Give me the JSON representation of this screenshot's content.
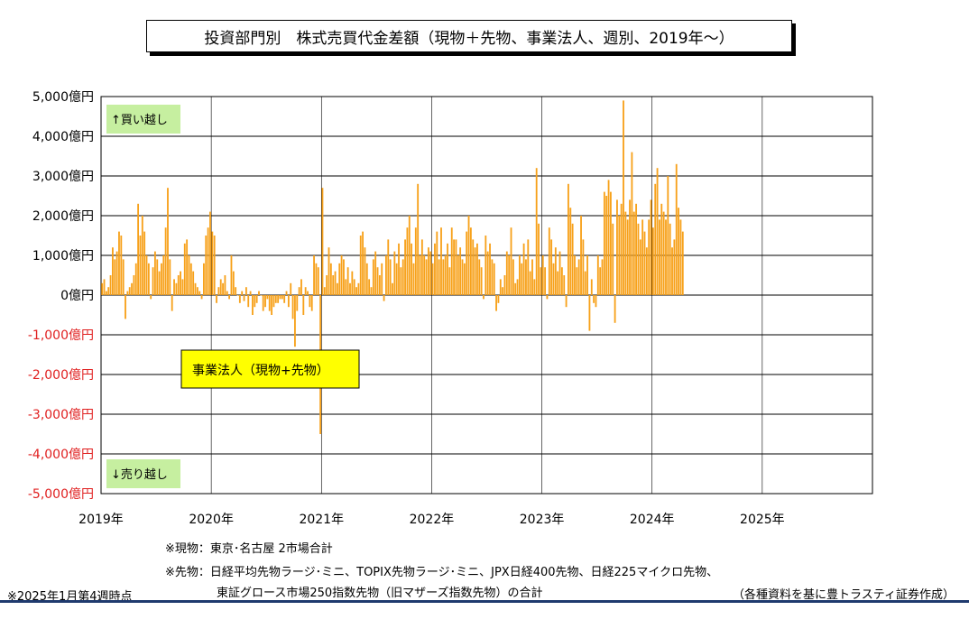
{
  "title": "投資部門別　株式売買代金差額（現物＋先物、事業法人、週別、2019年～）",
  "annotations": {
    "buy": "↑買い越し",
    "sell": "↓売り越し",
    "series_label": "事業法人（現物+先物）"
  },
  "notes": {
    "line1": "※現物：東京･名古屋 2市場合計",
    "line2": "※先物：日経平均先物ラージ･ミニ、TOPIX先物ラージ･ミニ、JPX日経400先物、日経225マイクロ先物、",
    "line3": "東証グロース市場250指数先物（旧マザーズ指数先物）の合計",
    "as_of": "※2025年1月第4週時点",
    "source": "（各種資料を基に豊トラスティ証券作成）"
  },
  "colors": {
    "bar": "#F7A11A",
    "negative_tick": "#E02020",
    "annotation_bg": "#C6EFA0",
    "label_bg": "#FFFF00",
    "rule": "#1F3A6E"
  },
  "chart_data": {
    "type": "bar",
    "title": "投資部門別　株式売買代金差額（現物＋先物、事業法人、週別、2019年～）",
    "unit": "億円",
    "ylim": [
      -5000,
      5000
    ],
    "yticks": [
      {
        "value": 5000,
        "label": "5,000億円"
      },
      {
        "value": 4000,
        "label": "4,000億円"
      },
      {
        "value": 3000,
        "label": "3,000億円"
      },
      {
        "value": 2000,
        "label": "2,000億円"
      },
      {
        "value": 1000,
        "label": "1,000億円"
      },
      {
        "value": 0,
        "label": "0億円"
      },
      {
        "value": -1000,
        "label": "-1,000億円"
      },
      {
        "value": -2000,
        "label": "-2,000億円"
      },
      {
        "value": -3000,
        "label": "-3,000億円"
      },
      {
        "value": -4000,
        "label": "-4,000億円"
      },
      {
        "value": -5000,
        "label": "-5,000億円"
      }
    ],
    "xlim": [
      2019,
      2026
    ],
    "xticks": [
      {
        "value": 2019,
        "label": "2019年"
      },
      {
        "value": 2020,
        "label": "2020年"
      },
      {
        "value": 2021,
        "label": "2021年"
      },
      {
        "value": 2022,
        "label": "2022年"
      },
      {
        "value": 2023,
        "label": "2023年"
      },
      {
        "value": 2024,
        "label": "2024年"
      },
      {
        "value": 2025,
        "label": "2025年"
      }
    ],
    "grid": true,
    "weeks_per_year": 52,
    "series": [
      {
        "values": [
          300,
          400,
          100,
          200,
          500,
          1200,
          900,
          1100,
          1600,
          1500,
          900,
          -600,
          100,
          200,
          300,
          500,
          800,
          2300,
          1500,
          2000,
          1600,
          1000,
          800,
          -100,
          700,
          1100,
          900,
          600,
          800,
          1000,
          1700,
          2700,
          900,
          -400,
          400,
          300,
          500,
          600,
          400,
          1300,
          1400,
          1000,
          800,
          600,
          300,
          200,
          100,
          -100,
          800,
          1500,
          1700,
          2100,
          1600,
          1500,
          -200,
          200,
          400,
          300,
          500,
          100,
          -100,
          1000,
          600,
          200,
          0,
          -200,
          100,
          -150,
          200,
          -300,
          100,
          -500,
          -300,
          -200,
          100,
          0,
          -400,
          -300,
          -100,
          -400,
          -500,
          -300,
          -200,
          -200,
          -100,
          -100,
          -200,
          100,
          -300,
          300,
          -600,
          -1300,
          -400,
          200,
          400,
          -500,
          200,
          100,
          -300,
          -400,
          1000,
          800,
          700,
          -3500,
          2700,
          200,
          500,
          1200,
          800,
          500,
          600,
          300,
          800,
          1000,
          900,
          400,
          700,
          300,
          600,
          400,
          200,
          300,
          1500,
          1600,
          1200,
          800,
          400,
          200,
          900,
          1100,
          700,
          500,
          800,
          -150,
          1000,
          1400,
          900,
          300,
          1100,
          800,
          1300,
          700,
          900,
          1400,
          1700,
          2000,
          1300,
          800,
          1700,
          2800,
          1000,
          1400,
          1000,
          900,
          1200,
          1100,
          800,
          1300,
          1600,
          900,
          1700,
          900,
          1000,
          1300,
          700,
          1700,
          1400,
          1400,
          1000,
          1200,
          900,
          800,
          1600,
          2000,
          1700,
          1400,
          1200,
          1300,
          900,
          700,
          -100,
          1500,
          1100,
          1300,
          900,
          800,
          -400,
          -200,
          400,
          200,
          500,
          1100,
          1000,
          1700,
          900,
          300,
          400,
          1000,
          800,
          1300,
          900,
          1400,
          600,
          900,
          400,
          3200,
          1800,
          700,
          1000,
          700,
          -100,
          1700,
          1400,
          800,
          1200,
          600,
          1100,
          700,
          500,
          -300,
          2800,
          2200,
          1800,
          1000,
          700,
          900,
          2000,
          1400,
          600,
          1000,
          -900,
          400,
          -200,
          -300,
          1000,
          700,
          900,
          2600,
          2500,
          2900,
          2600,
          1800,
          -700,
          2400,
          2000,
          2300,
          4900,
          2100,
          1900,
          2400,
          3600,
          2100,
          2300,
          1800,
          1400,
          1900,
          1600,
          1200,
          1900,
          2400,
          1700,
          2800,
          3200,
          1900,
          2300,
          2100,
          1900,
          3000,
          1800,
          1200,
          1400,
          3300,
          2200,
          1900,
          1600
        ]
      }
    ]
  }
}
